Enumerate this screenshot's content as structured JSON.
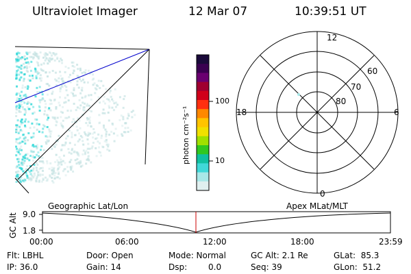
{
  "header": {
    "instrument": "Ultraviolet Imager",
    "date": "12 Mar 07",
    "time": "10:39:51 UT"
  },
  "colorbar": {
    "unit_label": "photon cm⁻²s⁻¹",
    "ticks": [
      "100",
      "10"
    ],
    "colors": [
      "#1a0a3a",
      "#3a0050",
      "#6a0070",
      "#a00030",
      "#d0001a",
      "#ff3010",
      "#ff8800",
      "#ffc400",
      "#f0e000",
      "#a0e000",
      "#30c820",
      "#10c0a0",
      "#40d8d8",
      "#a8e8e8",
      "#e0f0f0"
    ]
  },
  "polar_plot": {
    "mlt_labels": {
      "top": "12",
      "left": "18",
      "right": "6",
      "bottom": "0"
    },
    "lat_labels": [
      "60",
      "70",
      "80"
    ]
  },
  "timeline": {
    "left_title": "Geographic Lat/Lon",
    "right_title": "Apex MLat/MLT",
    "y_axis_label": "GC Alt",
    "y_ticks": [
      "9.0",
      "1.8"
    ],
    "x_ticks": [
      "00:00",
      "06:00",
      "12:00",
      "18:00",
      "23:59"
    ],
    "marker_color": "#cc0000"
  },
  "footer": {
    "flt": "Flt: LBHL",
    "ip": "IP: 36.0",
    "door": "Door: Open",
    "gain": "Gain: 14",
    "mode": "Mode: Normal",
    "dsp_label": "Dsp:",
    "dsp_value": "0.0",
    "gc_alt": "GC Alt: 2.1 Re",
    "seq": "Seq: 39",
    "glat": "GLat:  85.3",
    "glon": "GLon:  51.2"
  },
  "colors": {
    "aurora_cyan": "#30d8d8",
    "aurora_light": "#c8e4e4",
    "limb_line": "#0000cc"
  }
}
